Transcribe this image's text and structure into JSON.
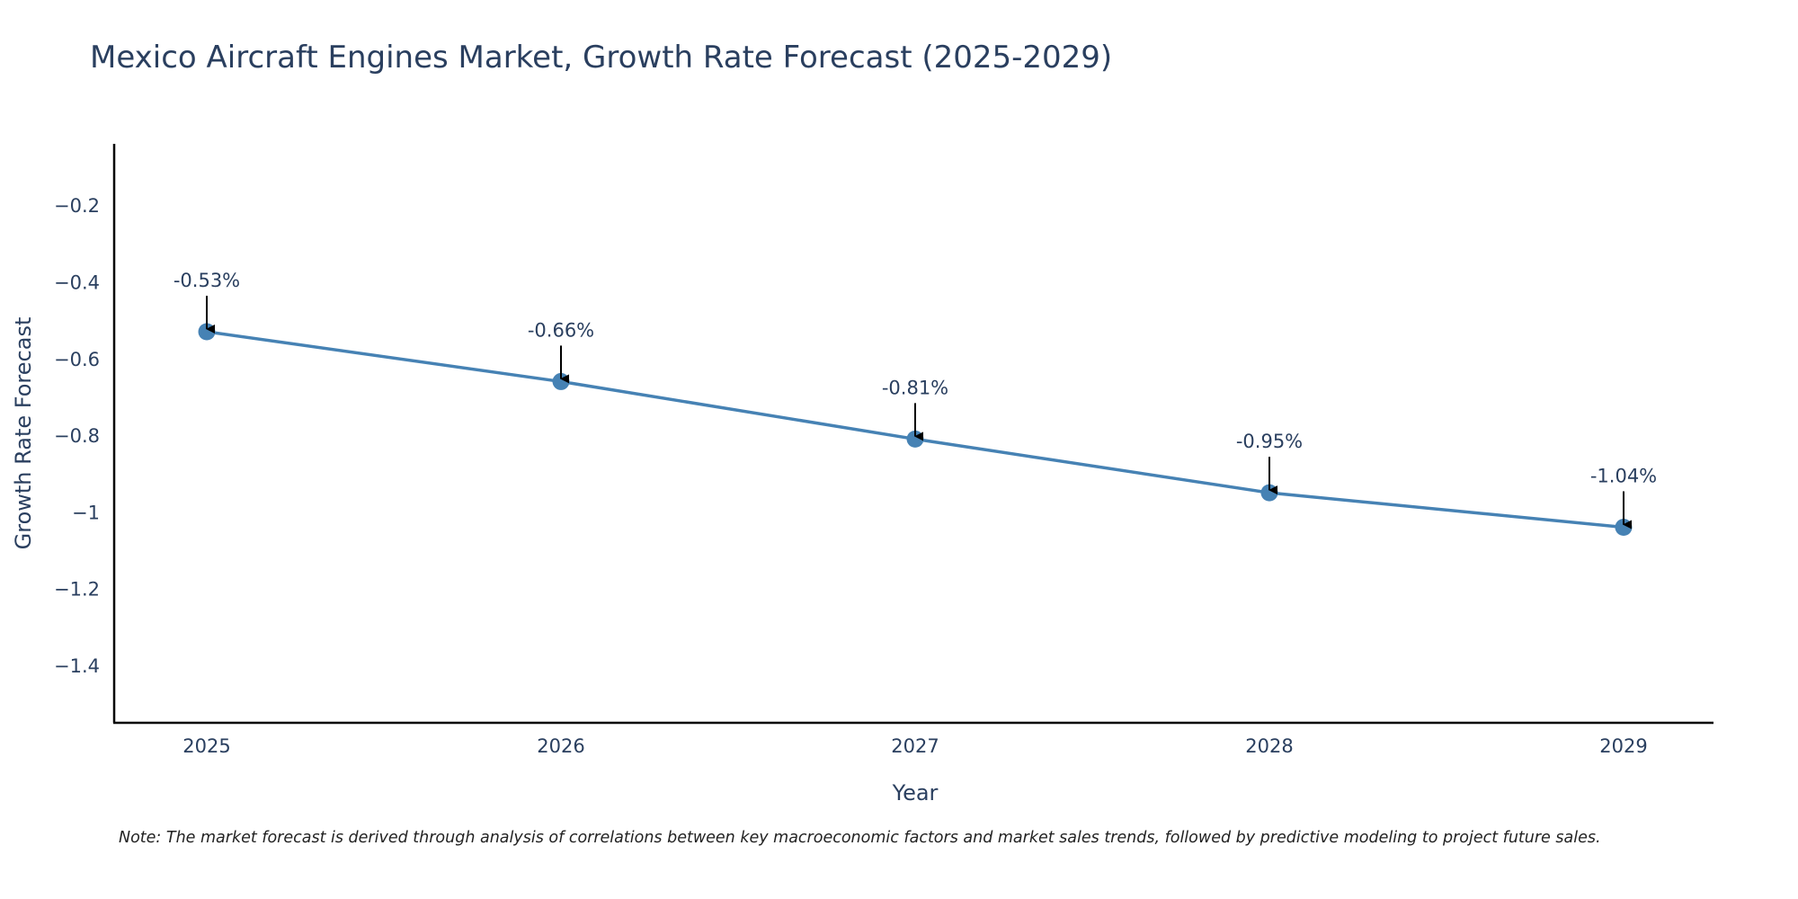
{
  "chart_data": {
    "type": "line",
    "title": "Mexico Aircraft Engines Market, Growth Rate Forecast (2025-2029)",
    "xlabel": "Year",
    "ylabel": "Growth Rate Forecast",
    "categories": [
      "2025",
      "2026",
      "2027",
      "2028",
      "2029"
    ],
    "series": [
      {
        "name": "Growth Rate Forecast",
        "values": [
          -0.53,
          -0.66,
          -0.81,
          -0.95,
          -1.04
        ],
        "color": "#4682b4"
      }
    ],
    "annotations": [
      "-0.53%",
      "-0.66%",
      "-0.81%",
      "-0.95%",
      "-1.04%"
    ],
    "yticks": [
      -0.2,
      -0.4,
      -0.6,
      -0.8,
      -1,
      -1.2,
      -1.4
    ],
    "ytick_labels": [
      "−0.2",
      "−0.4",
      "−0.6",
      "−0.8",
      "−1",
      "−1.2",
      "−1.4"
    ],
    "ylim": [
      -1.55,
      -0.04
    ],
    "grid": false,
    "note": "Note: The market forecast is derived through analysis of correlations between key macroeconomic factors and market sales trends, followed by predictive modeling to project future sales."
  }
}
